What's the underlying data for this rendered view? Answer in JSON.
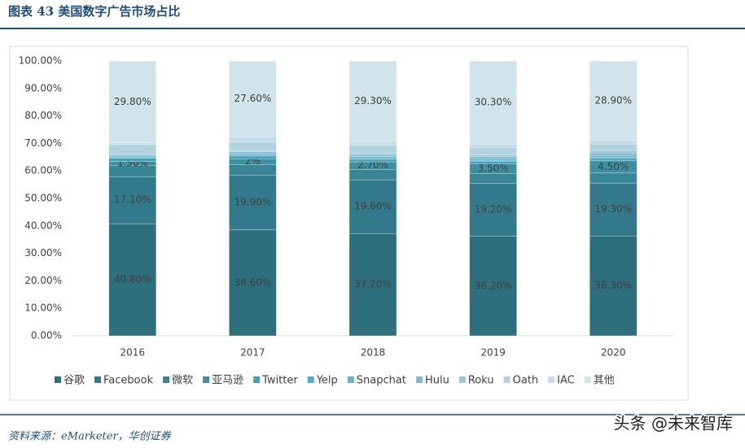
{
  "chart_data": {
    "type": "stacked-bar",
    "title": "图表 43 美国数字广告市场占比",
    "categories": [
      "2016",
      "2017",
      "2018",
      "2019",
      "2020"
    ],
    "ylim": [
      0,
      100
    ],
    "yticks": [
      {
        "value": 0,
        "label": "0.00%"
      },
      {
        "value": 10,
        "label": "10.00%"
      },
      {
        "value": 20,
        "label": "20.00%"
      },
      {
        "value": 30,
        "label": "30.00%"
      },
      {
        "value": 40,
        "label": "40.00%"
      },
      {
        "value": 50,
        "label": "50.00%"
      },
      {
        "value": 60,
        "label": "60.00%"
      },
      {
        "value": 70,
        "label": "70.00%"
      },
      {
        "value": 80,
        "label": "80.00%"
      },
      {
        "value": 90,
        "label": "90.00%"
      },
      {
        "value": 100,
        "label": "100.00%"
      }
    ],
    "legend": "bottom",
    "series": [
      {
        "name": "谷歌",
        "color": "#2e6f7d",
        "values": [
          40.8,
          38.6,
          37.2,
          36.2,
          36.3
        ],
        "value_labels": [
          "40.80%",
          "38.60%",
          "37.20%",
          "36.20%",
          "36.30%"
        ]
      },
      {
        "name": "Facebook",
        "color": "#327a8b",
        "values": [
          17.1,
          19.9,
          19.6,
          19.2,
          19.3
        ],
        "value_labels": [
          "17.10%",
          "19.90%",
          "19.60%",
          "19.20%",
          "19.30%"
        ]
      },
      {
        "name": "微软",
        "color": "#388596",
        "values": [
          4.0,
          3.9,
          3.8,
          3.7,
          3.6
        ]
      },
      {
        "name": "亚马逊",
        "color": "#3f8fa3",
        "values": [
          1.5,
          2,
          2.7,
          3.5,
          4.5
        ],
        "value_labels": [
          "1.50%",
          "2%",
          "2.70%",
          "3.50%",
          "4.50%"
        ]
      },
      {
        "name": "Twitter",
        "color": "#4a9fb8",
        "values": [
          1.2,
          1.0,
          0.9,
          0.8,
          0.8
        ]
      },
      {
        "name": "Yelp",
        "color": "#4fabc8",
        "values": [
          0.4,
          0.4,
          0.4,
          0.4,
          0.4
        ]
      },
      {
        "name": "Snapchat",
        "color": "#66b2c9",
        "values": [
          0.4,
          0.5,
          0.6,
          0.6,
          0.7
        ]
      },
      {
        "name": "Hulu",
        "color": "#82bccf",
        "values": [
          0.5,
          0.6,
          0.7,
          0.8,
          0.9
        ]
      },
      {
        "name": "Roku",
        "color": "#9cc6d5",
        "values": [
          0.3,
          0.4,
          0.5,
          0.6,
          0.7
        ]
      },
      {
        "name": "Oath",
        "color": "#b2d2de",
        "values": [
          3.4,
          3.2,
          2.9,
          2.7,
          2.5
        ]
      },
      {
        "name": "IAC",
        "color": "#c3dce5",
        "values": [
          0.6,
          1.9,
          1.4,
          1.2,
          1.4
        ]
      },
      {
        "name": "其他",
        "color": "#d1e4eb",
        "values": [
          29.8,
          27.6,
          29.3,
          30.3,
          28.9
        ],
        "value_labels": [
          "29.80%",
          "27.60%",
          "29.30%",
          "30.30%",
          "28.90%"
        ]
      }
    ]
  },
  "footer": {
    "source": "资料来源：eMarketer，华创证券",
    "watermark": "头条 @未来智库"
  }
}
